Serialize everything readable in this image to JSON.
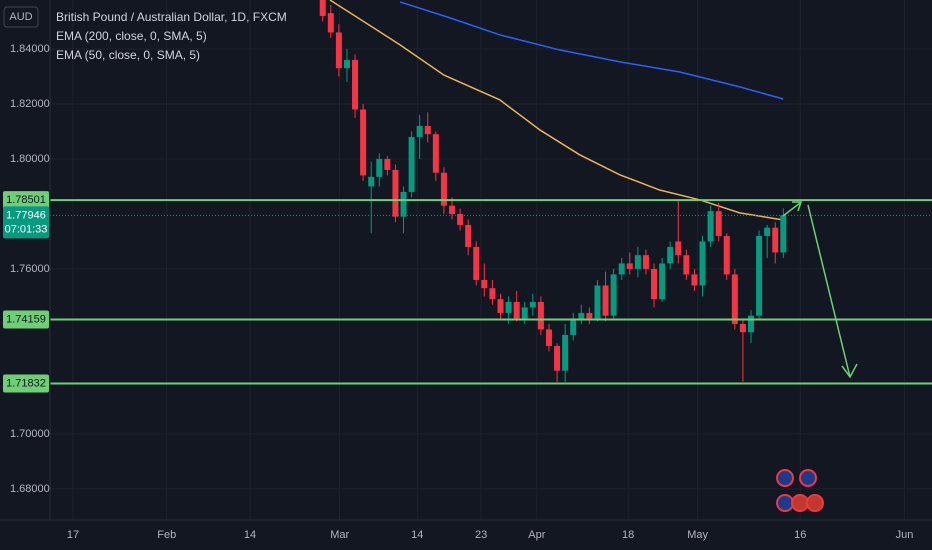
{
  "chart_data": {
    "type": "candlestick",
    "title": "British Pound / Australian Dollar, 1D, FXCM",
    "currency": "AUD",
    "up_color": "#089981",
    "down_color": "#f23645",
    "candles": {
      "open": [
        1.8578,
        1.853,
        1.846,
        1.833,
        1.836,
        1.818,
        1.79,
        1.7935,
        1.8,
        1.796,
        1.779,
        1.788,
        1.808,
        1.812,
        1.809,
        1.795,
        1.783,
        1.78,
        1.776,
        1.768,
        1.756,
        1.753,
        1.749,
        1.744,
        1.748,
        1.742,
        1.746,
        1.748,
        1.738,
        1.732,
        1.723,
        1.736,
        1.742,
        1.744,
        1.742,
        1.754,
        1.743,
        1.758,
        1.762,
        1.76,
        1.765,
        1.76,
        1.749,
        1.762,
        1.77,
        1.765,
        1.758,
        1.754,
        1.77,
        1.781,
        1.772,
        1.758,
        1.74,
        1.737,
        1.743,
        1.772,
        1.775,
        1.766
      ],
      "high": [
        1.8585,
        1.856,
        1.849,
        1.84,
        1.838,
        1.82,
        1.799,
        1.802,
        1.801,
        1.798,
        1.79,
        1.81,
        1.816,
        1.817,
        1.81,
        1.797,
        1.786,
        1.782,
        1.778,
        1.77,
        1.762,
        1.756,
        1.751,
        1.75,
        1.752,
        1.748,
        1.751,
        1.75,
        1.74,
        1.733,
        1.74,
        1.744,
        1.747,
        1.746,
        1.756,
        1.759,
        1.76,
        1.764,
        1.766,
        1.768,
        1.767,
        1.762,
        1.764,
        1.77,
        1.785,
        1.767,
        1.76,
        1.772,
        1.783,
        1.784,
        1.773,
        1.76,
        1.742,
        1.745,
        1.774,
        1.776,
        1.777,
        1.782
      ],
      "low": [
        1.85,
        1.844,
        1.83,
        1.828,
        1.815,
        1.792,
        1.773,
        1.79,
        1.794,
        1.777,
        1.773,
        1.786,
        1.8,
        1.806,
        1.792,
        1.78,
        1.778,
        1.774,
        1.765,
        1.754,
        1.75,
        1.747,
        1.742,
        1.74,
        1.741,
        1.74,
        1.743,
        1.736,
        1.73,
        1.719,
        1.719,
        1.734,
        1.74,
        1.74,
        1.741,
        1.741,
        1.742,
        1.756,
        1.758,
        1.757,
        1.758,
        1.746,
        1.748,
        1.76,
        1.762,
        1.756,
        1.752,
        1.75,
        1.768,
        1.77,
        1.756,
        1.738,
        1.719,
        1.733,
        1.742,
        1.764,
        1.762,
        1.764
      ],
      "close": [
        1.852,
        1.846,
        1.833,
        1.836,
        1.818,
        1.794,
        1.7935,
        1.8,
        1.796,
        1.779,
        1.788,
        1.808,
        1.812,
        1.809,
        1.795,
        1.783,
        1.78,
        1.776,
        1.768,
        1.756,
        1.753,
        1.749,
        1.744,
        1.748,
        1.742,
        1.746,
        1.748,
        1.738,
        1.732,
        1.723,
        1.736,
        1.742,
        1.744,
        1.742,
        1.754,
        1.743,
        1.758,
        1.762,
        1.76,
        1.765,
        1.76,
        1.749,
        1.762,
        1.768,
        1.765,
        1.758,
        1.754,
        1.77,
        1.781,
        1.772,
        1.758,
        1.74,
        1.737,
        1.743,
        1.772,
        1.775,
        1.766,
        1.7795
      ]
    },
    "indicators": [
      {
        "name": "EMA (200, close, 0, SMA, 5)",
        "color": "#2962ff",
        "x": [
          9.57,
          15.75,
          21.94,
          29.37,
          36.8,
          44.2,
          51.6,
          57
        ],
        "values": [
          1.8571,
          1.8513,
          1.8451,
          1.8396,
          1.8353,
          1.8316,
          1.8262,
          1.8218
        ]
      },
      {
        "name": "EMA (50, close, 0, SMA, 5)",
        "color": "#e8b45a",
        "x": [
          0.9,
          9.57,
          15.0,
          21.9,
          26.9,
          31.8,
          36.8,
          41.7,
          46.7,
          51.6,
          57
        ],
        "values": [
          1.8578,
          1.8415,
          1.8305,
          1.8215,
          1.8105,
          1.8015,
          1.7942,
          1.7887,
          1.7851,
          1.7804,
          1.7778
        ]
      }
    ],
    "levels": [
      {
        "value": 1.78501,
        "label": "1.78501"
      },
      {
        "value": 1.74159,
        "label": "1.74159"
      },
      {
        "value": 1.71832,
        "label": "1.71832"
      }
    ],
    "level_color": "#6fcf77",
    "last_price": {
      "value": 1.77946,
      "label": "1.77946"
    },
    "countdown": "07:01:33",
    "ylim": [
      1.6687,
      1.8578
    ],
    "yticks": [
      {
        "value": 1.84,
        "label": "1.84000"
      },
      {
        "value": 1.82,
        "label": "1.82000"
      },
      {
        "value": 1.8,
        "label": "1.80000"
      },
      {
        "value": 1.76,
        "label": "1.76000"
      },
      {
        "value": 1.7,
        "label": "1.70000"
      },
      {
        "value": 1.68,
        "label": "1.68000"
      }
    ],
    "xlim": [
      -33.75,
      75.4
    ],
    "xticks": [
      {
        "value": -30.9,
        "label": "17"
      },
      {
        "value": -19.3,
        "label": "Feb"
      },
      {
        "value": -9.0,
        "label": "14"
      },
      {
        "value": 2.1,
        "label": "Mar"
      },
      {
        "value": 11.7,
        "label": "14"
      },
      {
        "value": 19.6,
        "label": "23"
      },
      {
        "value": 26.5,
        "label": "Apr"
      },
      {
        "value": 37.8,
        "label": "18"
      },
      {
        "value": 46.4,
        "label": "May"
      },
      {
        "value": 59.1,
        "label": "16"
      },
      {
        "value": 72.0,
        "label": "Jun"
      }
    ],
    "grid": true
  }
}
